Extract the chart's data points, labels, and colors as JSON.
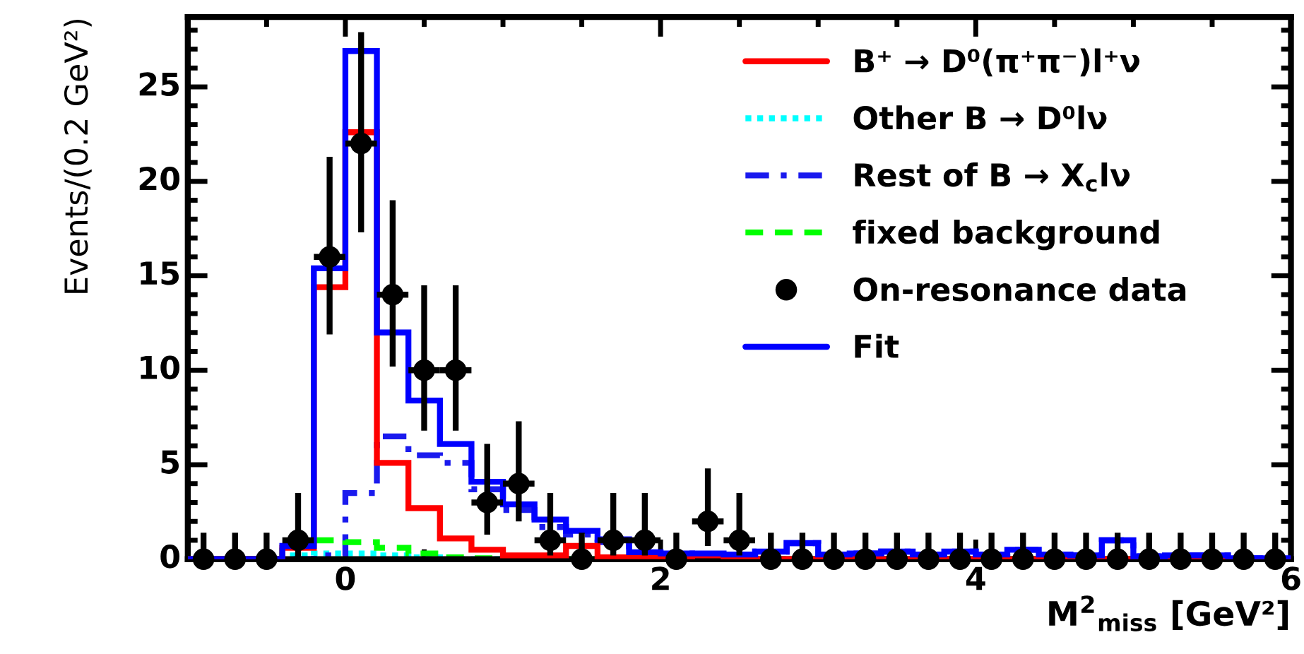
{
  "chart_data": {
    "type": "histogram",
    "xlabel": "M$^{2}$$_{miss}$ [GeV²]",
    "ylabel": "Events/(0.2 GeV²)",
    "bins": [
      -1.0,
      -0.8,
      -0.6,
      -0.4,
      -0.2,
      0.0,
      0.2,
      0.4,
      0.6,
      0.8,
      1.0,
      1.2,
      1.4,
      1.6,
      1.8,
      2.0,
      2.2,
      2.4,
      2.6,
      2.8,
      3.0,
      3.2,
      3.4,
      3.6,
      3.8,
      4.0,
      4.2,
      4.4,
      4.6,
      4.8,
      5.0,
      5.2,
      5.4,
      5.6,
      5.8,
      6.0
    ],
    "xlim": [
      -1,
      6
    ],
    "xticks": [
      {
        "value": -0.5,
        "label": null
      },
      0,
      {
        "value": 0.5,
        "label": null
      },
      {
        "value": 1,
        "label": null
      },
      {
        "value": 1.5,
        "label": null
      },
      2,
      {
        "value": 2.5,
        "label": null
      },
      {
        "value": 3,
        "label": null
      },
      {
        "value": 3.5,
        "label": null
      },
      4,
      {
        "value": 4.5,
        "label": null
      },
      {
        "value": 5,
        "label": null
      },
      {
        "value": 5.5,
        "label": null
      },
      6
    ],
    "ylim": [
      0,
      28.7
    ],
    "yticks": [
      0,
      {
        "value": 1,
        "label": null
      },
      {
        "value": 2,
        "label": null
      },
      {
        "value": 3,
        "label": null
      },
      {
        "value": 4,
        "label": null
      },
      5,
      {
        "value": 6,
        "label": null
      },
      {
        "value": 7,
        "label": null
      },
      {
        "value": 8,
        "label": null
      },
      {
        "value": 9,
        "label": null
      },
      10,
      {
        "value": 11,
        "label": null
      },
      {
        "value": 12,
        "label": null
      },
      {
        "value": 13,
        "label": null
      },
      {
        "value": 14,
        "label": null
      },
      15,
      {
        "value": 16,
        "label": null
      },
      {
        "value": 17,
        "label": null
      },
      {
        "value": 18,
        "label": null
      },
      {
        "value": 19,
        "label": null
      },
      20,
      {
        "value": 21,
        "label": null
      },
      {
        "value": 22,
        "label": null
      },
      {
        "value": 23,
        "label": null
      },
      {
        "value": 24,
        "label": null
      },
      25,
      {
        "value": 26,
        "label": null
      },
      {
        "value": 27,
        "label": null
      },
      {
        "value": 28,
        "label": null
      }
    ],
    "legend": "top right",
    "grid": false,
    "series": [
      {
        "name": "B⁺ → D⁰(π⁺π⁻)l⁺ν",
        "color": "#ff0000",
        "line_style": "solid",
        "values": [
          0,
          0,
          0,
          0.6,
          14.4,
          22.6,
          5.1,
          2.7,
          1.1,
          0.5,
          0.2,
          0.2,
          0.7,
          0.1,
          0.1,
          0,
          0.2,
          0,
          0,
          0,
          0,
          0,
          0,
          0,
          0,
          0,
          0,
          0,
          0,
          0,
          0,
          0,
          0,
          0,
          0
        ]
      },
      {
        "name": "Other B → D⁰lν",
        "color": "#00ffff",
        "line_style": "dotted",
        "values": [
          0,
          0,
          0,
          0.2,
          0.3,
          0.3,
          0.2,
          0.1,
          0,
          0,
          0,
          0,
          0,
          0,
          0,
          0,
          0,
          0,
          0,
          0,
          0,
          0,
          0,
          0,
          0,
          0,
          0,
          0,
          0,
          0,
          0,
          0,
          0,
          0,
          0
        ]
      },
      {
        "name": "Rest of B → X$_{c}$lν",
        "color": "#1a1aee",
        "line_style": "dashdot",
        "values": [
          0,
          0,
          0,
          0,
          0.2,
          3.5,
          6.5,
          5.5,
          5.1,
          3.7,
          2.6,
          1.7,
          1.3,
          0.9,
          0.3,
          0.3,
          0.1,
          0.25,
          0.4,
          0.85,
          0.25,
          0.3,
          0.4,
          0.25,
          0.4,
          0.25,
          0.5,
          0.25,
          0.2,
          1.0,
          0.15,
          0.2,
          0.2,
          0.05,
          0.05
        ]
      },
      {
        "name": "fixed background",
        "color": "#00ff00",
        "line_style": "dashed",
        "values": [
          0,
          0,
          0,
          0.85,
          1.0,
          0.9,
          0.6,
          0.3,
          0.1,
          0.05,
          0,
          0,
          0,
          0,
          0,
          0,
          0,
          0,
          0,
          0,
          0,
          0,
          0,
          0,
          0,
          0,
          0,
          0,
          0,
          0,
          0,
          0,
          0,
          0,
          0
        ]
      },
      {
        "name": "On-resonance data",
        "type": "scatter",
        "color": "#000000",
        "marker": "circle",
        "x": [
          -0.9,
          -0.7,
          -0.5,
          -0.3,
          -0.1,
          0.1,
          0.3,
          0.5,
          0.7,
          0.9,
          1.1,
          1.3,
          1.5,
          1.7,
          1.9,
          2.1,
          2.3,
          2.5,
          2.7,
          2.9,
          3.1,
          3.3,
          3.5,
          3.7,
          3.9,
          4.1,
          4.3,
          4.5,
          4.7,
          4.9,
          5.1,
          5.3,
          5.5,
          5.7,
          5.9
        ],
        "values": [
          0,
          0,
          0,
          1,
          16,
          22,
          14,
          10,
          10,
          3,
          4,
          1,
          0,
          1,
          1,
          0,
          2,
          1,
          0,
          0,
          0,
          0,
          0,
          0,
          0,
          0,
          0,
          0,
          0,
          0,
          0,
          0,
          0,
          0,
          0
        ],
        "errors": [
          [
            0,
            1.4
          ],
          [
            0,
            1.4
          ],
          [
            0,
            1.4
          ],
          [
            0,
            3.5
          ],
          [
            11.9,
            21.3
          ],
          [
            17.3,
            27.9
          ],
          [
            10.2,
            19.0
          ],
          [
            6.8,
            14.5
          ],
          [
            6.8,
            14.5
          ],
          [
            1.3,
            6.1
          ],
          [
            2.0,
            7.3
          ],
          [
            0.2,
            3.5
          ],
          [
            0,
            1.4
          ],
          [
            0.2,
            3.5
          ],
          [
            0.2,
            3.5
          ],
          [
            0,
            1.4
          ],
          [
            0.7,
            4.8
          ],
          [
            0.2,
            3.5
          ],
          [
            0,
            1.4
          ],
          [
            0,
            1.4
          ],
          [
            0,
            1.4
          ],
          [
            0,
            1.4
          ],
          [
            0,
            1.4
          ],
          [
            0,
            1.4
          ],
          [
            0,
            1.4
          ],
          [
            0,
            1.4
          ],
          [
            0,
            1.4
          ],
          [
            0,
            1.4
          ],
          [
            0,
            1.4
          ],
          [
            0,
            1.4
          ],
          [
            0,
            1.4
          ],
          [
            0,
            1.4
          ],
          [
            0,
            1.4
          ],
          [
            0,
            1.4
          ],
          [
            0,
            1.4
          ]
        ],
        "xerrors": [
          null,
          null,
          null,
          0.1,
          0.1,
          0.1,
          0.1,
          0.1,
          0.1,
          0.1,
          0.1,
          0.1,
          null,
          0.1,
          0.1,
          null,
          0.1,
          0.1,
          null,
          null,
          null,
          null,
          null,
          null,
          null,
          null,
          null,
          null,
          null,
          null,
          null,
          null,
          null,
          null,
          null
        ]
      },
      {
        "name": "Fit",
        "color": "#0000ff",
        "line_style": "solid",
        "values": [
          0,
          0,
          0,
          0.7,
          15.4,
          26.9,
          12.0,
          8.4,
          6.1,
          4.1,
          2.9,
          2.1,
          1.5,
          1.05,
          0.37,
          0.3,
          0.3,
          0.25,
          0.4,
          0.85,
          0.25,
          0.3,
          0.4,
          0.25,
          0.4,
          0.25,
          0.5,
          0.25,
          0.2,
          1.0,
          0.15,
          0.2,
          0.2,
          0.05,
          0.05
        ]
      }
    ]
  }
}
